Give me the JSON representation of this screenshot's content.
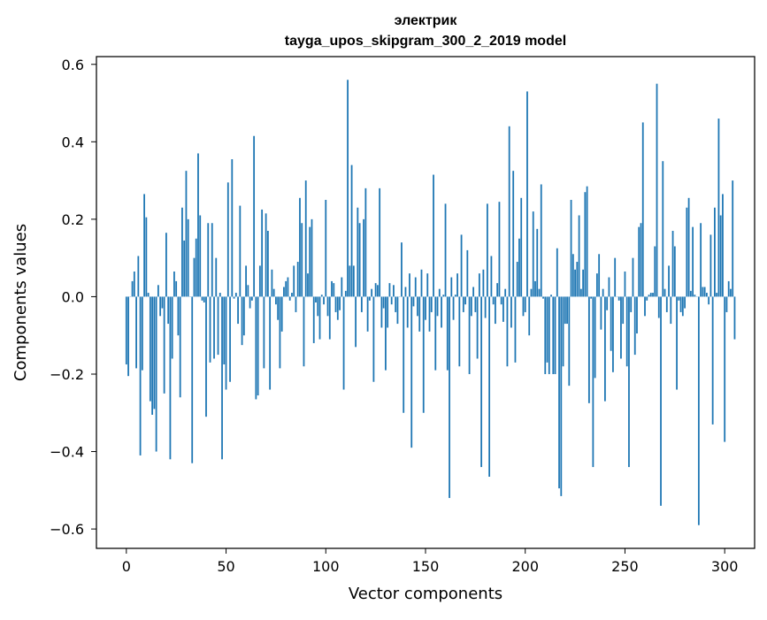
{
  "chart_data": {
    "type": "bar",
    "title_line1": "электрик",
    "title_line2": "tayga_upos_skipgram_300_2_2019 model",
    "xlabel": "Vector components",
    "ylabel": "Components values",
    "xlim": [
      -15,
      315
    ],
    "ylim": [
      -0.65,
      0.62
    ],
    "xticks": [
      0,
      50,
      100,
      150,
      200,
      250,
      300
    ],
    "xtick_labels": [
      "0",
      "50",
      "100",
      "150",
      "200",
      "250",
      "300"
    ],
    "yticks": [
      -0.6,
      -0.4,
      -0.2,
      0.0,
      0.2,
      0.4,
      0.6
    ],
    "ytick_labels": [
      "−0.6",
      "−0.4",
      "−0.2",
      "0.0",
      "0.2",
      "0.4",
      "0.6"
    ],
    "bar_color": "#1f77b4",
    "values": [
      -0.175,
      -0.205,
      0.0,
      0.04,
      0.065,
      -0.185,
      0.105,
      -0.41,
      -0.19,
      0.265,
      0.205,
      0.01,
      -0.27,
      -0.305,
      -0.29,
      -0.4,
      0.03,
      -0.05,
      -0.03,
      -0.25,
      0.165,
      -0.07,
      -0.42,
      -0.16,
      0.065,
      0.04,
      -0.1,
      -0.26,
      0.23,
      0.145,
      0.325,
      0.2,
      0.0,
      -0.43,
      0.1,
      0.15,
      0.37,
      0.21,
      -0.01,
      -0.015,
      -0.31,
      0.19,
      -0.17,
      0.19,
      -0.16,
      0.1,
      -0.15,
      0.01,
      -0.42,
      -0.175,
      -0.24,
      0.295,
      -0.22,
      0.355,
      -0.005,
      0.01,
      -0.07,
      0.235,
      -0.125,
      -0.1,
      0.08,
      0.03,
      -0.03,
      -0.01,
      0.415,
      -0.265,
      -0.255,
      0.08,
      0.225,
      -0.185,
      0.215,
      0.17,
      -0.24,
      0.07,
      0.02,
      -0.02,
      -0.06,
      -0.185,
      -0.09,
      0.025,
      0.04,
      0.05,
      -0.01,
      0.01,
      0.08,
      -0.04,
      0.09,
      0.255,
      0.19,
      -0.18,
      0.3,
      0.06,
      0.18,
      0.2,
      -0.12,
      -0.015,
      -0.05,
      -0.11,
      0.005,
      -0.02,
      0.25,
      -0.05,
      -0.11,
      0.04,
      0.035,
      -0.04,
      -0.06,
      -0.035,
      0.05,
      -0.24,
      0.015,
      0.56,
      0.08,
      0.34,
      0.08,
      -0.13,
      0.23,
      0.19,
      -0.04,
      0.2,
      0.28,
      -0.09,
      -0.01,
      0.02,
      -0.22,
      0.035,
      0.03,
      0.28,
      -0.08,
      -0.03,
      -0.19,
      -0.08,
      0.035,
      -0.02,
      0.03,
      -0.04,
      -0.07,
      0.0,
      0.14,
      -0.3,
      0.025,
      -0.08,
      0.06,
      -0.39,
      -0.025,
      0.05,
      -0.05,
      -0.09,
      0.07,
      -0.3,
      -0.06,
      0.06,
      -0.09,
      -0.04,
      0.315,
      -0.19,
      -0.05,
      0.02,
      -0.08,
      0.005,
      0.24,
      -0.19,
      -0.52,
      0.05,
      -0.06,
      0.005,
      0.06,
      -0.18,
      0.16,
      -0.04,
      -0.02,
      0.12,
      -0.2,
      -0.05,
      0.025,
      -0.04,
      -0.16,
      0.06,
      -0.44,
      0.07,
      -0.055,
      0.24,
      -0.465,
      0.105,
      -0.02,
      -0.07,
      0.035,
      0.245,
      -0.02,
      -0.065,
      0.02,
      -0.18,
      0.44,
      -0.08,
      0.325,
      -0.17,
      0.09,
      0.15,
      0.255,
      -0.05,
      -0.04,
      0.53,
      -0.1,
      0.02,
      0.22,
      0.04,
      0.175,
      0.02,
      0.29,
      -0.005,
      -0.2,
      -0.17,
      -0.2,
      0.005,
      -0.2,
      -0.2,
      0.125,
      -0.495,
      -0.515,
      -0.18,
      -0.07,
      -0.07,
      -0.23,
      0.25,
      0.11,
      0.07,
      0.09,
      0.21,
      0.02,
      0.07,
      0.27,
      0.285,
      -0.275,
      -0.005,
      -0.44,
      -0.21,
      0.06,
      0.11,
      -0.085,
      0.02,
      -0.27,
      -0.035,
      0.05,
      -0.14,
      -0.195,
      0.1,
      0.0,
      -0.01,
      -0.16,
      -0.07,
      0.065,
      -0.18,
      -0.44,
      -0.04,
      0.1,
      -0.15,
      -0.095,
      0.18,
      0.19,
      0.45,
      -0.05,
      -0.01,
      0.005,
      0.01,
      0.01,
      0.13,
      0.55,
      -0.055,
      -0.54,
      0.35,
      0.02,
      -0.04,
      0.08,
      -0.07,
      0.17,
      0.13,
      -0.24,
      -0.01,
      -0.04,
      -0.05,
      -0.03,
      0.23,
      0.255,
      0.015,
      0.18,
      0.005,
      0.0,
      -0.59,
      0.19,
      0.025,
      0.025,
      0.01,
      -0.02,
      0.16,
      -0.33,
      0.23,
      0.01,
      0.46,
      0.21,
      0.265,
      -0.375,
      -0.04,
      0.04,
      0.02,
      0.3,
      -0.11
    ]
  }
}
